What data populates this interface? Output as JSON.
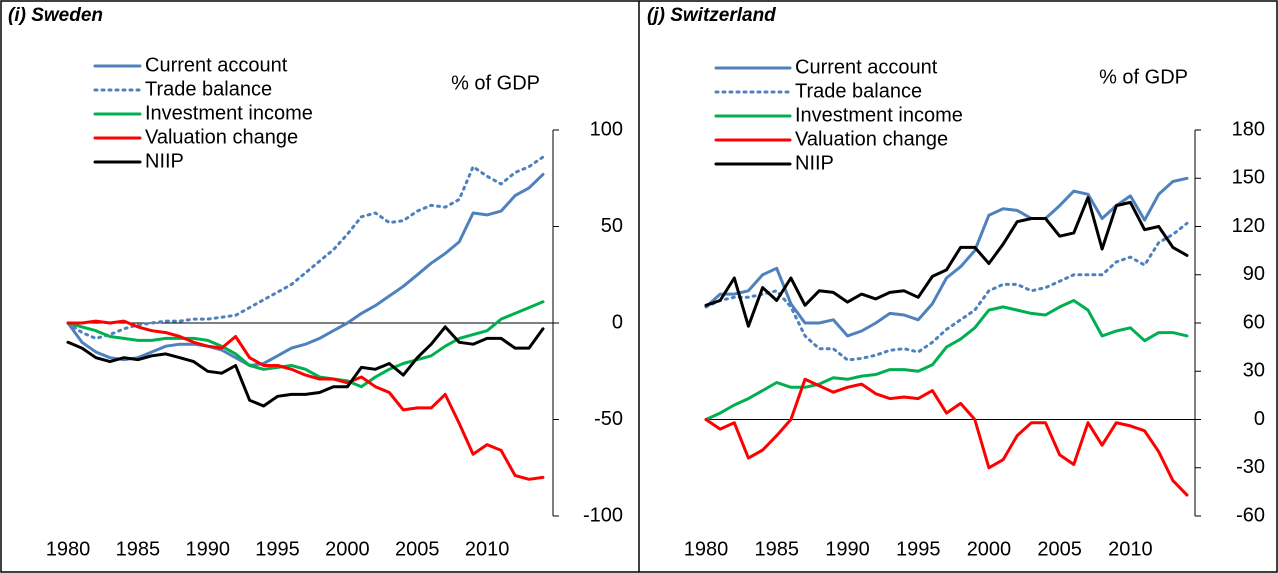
{
  "chart_data": [
    {
      "type": "line",
      "title": "(i) Sweden",
      "y_label": "% of GDP",
      "x": [
        1980,
        1981,
        1982,
        1983,
        1984,
        1985,
        1986,
        1987,
        1988,
        1989,
        1990,
        1991,
        1992,
        1993,
        1994,
        1995,
        1996,
        1997,
        1998,
        1999,
        2000,
        2001,
        2002,
        2003,
        2004,
        2005,
        2006,
        2007,
        2008,
        2009,
        2010,
        2011,
        2012,
        2013,
        2014
      ],
      "xlim": [
        1980,
        2014
      ],
      "xticks": [
        1980,
        1985,
        1990,
        1995,
        2000,
        2005,
        2010
      ],
      "ylim": [
        -100,
        100
      ],
      "yticks": [
        -100,
        -50,
        0,
        50,
        100
      ],
      "zero_line": true,
      "series": [
        {
          "name": "Current account",
          "color": "#4f81bd",
          "style": "solid",
          "values": [
            0,
            -10,
            -15,
            -18,
            -19,
            -18,
            -15,
            -12,
            -11,
            -11,
            -12,
            -14,
            -18,
            -22,
            -21,
            -17,
            -13,
            -11,
            -8,
            -4,
            0,
            5,
            9,
            14,
            19,
            25,
            31,
            36,
            42,
            57,
            56,
            58,
            66,
            70,
            77
          ]
        },
        {
          "name": "Trade balance",
          "color": "#4f81bd",
          "style": "dotted",
          "values": [
            0,
            -5,
            -8,
            -6,
            -3,
            -1,
            0,
            1,
            1,
            2,
            2,
            3,
            4,
            8,
            12,
            16,
            20,
            26,
            32,
            38,
            46,
            55,
            57,
            52,
            53,
            58,
            61,
            60,
            64,
            81,
            76,
            72,
            78,
            81,
            86
          ]
        },
        {
          "name": "Investment income",
          "color": "#00b050",
          "style": "solid",
          "values": [
            0,
            -2,
            -4,
            -7,
            -8,
            -9,
            -9,
            -8,
            -8,
            -8,
            -9,
            -12,
            -16,
            -22,
            -24,
            -23,
            -22,
            -24,
            -28,
            -29,
            -30,
            -33,
            -28,
            -24,
            -21,
            -19,
            -17,
            -12,
            -8,
            -6,
            -4,
            2,
            5,
            8,
            11
          ]
        },
        {
          "name": "Valuation change",
          "color": "#ff0000",
          "style": "solid",
          "values": [
            0,
            0,
            1,
            0,
            1,
            -2,
            -4,
            -5,
            -7,
            -10,
            -12,
            -13,
            -7,
            -18,
            -22,
            -22,
            -24,
            -27,
            -29,
            -29,
            -31,
            -28,
            -33,
            -36,
            -45,
            -44,
            -44,
            -37,
            -52,
            -68,
            -63,
            -66,
            -79,
            -81,
            -80
          ]
        },
        {
          "name": "NIIP",
          "color": "#000000",
          "style": "solid",
          "values": [
            -10,
            -13,
            -18,
            -20,
            -18,
            -19,
            -17,
            -16,
            -18,
            -20,
            -25,
            -26,
            -22,
            -40,
            -43,
            -38,
            -37,
            -37,
            -36,
            -33,
            -33,
            -23,
            -24,
            -21,
            -27,
            -18,
            -11,
            -2,
            -10,
            -11,
            -8,
            -8,
            -13,
            -13,
            -3
          ]
        }
      ]
    },
    {
      "type": "line",
      "title": "(j) Switzerland",
      "y_label": "% of GDP",
      "x": [
        1980,
        1981,
        1982,
        1983,
        1984,
        1985,
        1986,
        1987,
        1988,
        1989,
        1990,
        1991,
        1992,
        1993,
        1994,
        1995,
        1996,
        1997,
        1998,
        1999,
        2000,
        2001,
        2002,
        2003,
        2004,
        2005,
        2006,
        2007,
        2008,
        2009,
        2010,
        2011,
        2012,
        2013,
        2014
      ],
      "xlim": [
        1980,
        2014
      ],
      "xticks": [
        1980,
        1985,
        1990,
        1995,
        2000,
        2005,
        2010
      ],
      "ylim": [
        -60,
        180
      ],
      "yticks": [
        -60,
        -30,
        0,
        30,
        60,
        90,
        120,
        150,
        180
      ],
      "zero_line": true,
      "series": [
        {
          "name": "Current account",
          "color": "#4f81bd",
          "style": "solid",
          "values": [
            70,
            78,
            78,
            80,
            90,
            94,
            72,
            60,
            60,
            62,
            52,
            55,
            60,
            66,
            65,
            62,
            72,
            88,
            95,
            105,
            127,
            131,
            130,
            125,
            125,
            133,
            142,
            140,
            125,
            133,
            139,
            124,
            140,
            148,
            150
          ]
        },
        {
          "name": "Trade balance",
          "color": "#4f81bd",
          "style": "dotted",
          "values": [
            70,
            74,
            76,
            76,
            78,
            80,
            70,
            52,
            44,
            44,
            37,
            38,
            40,
            43,
            44,
            42,
            48,
            56,
            62,
            68,
            80,
            84,
            84,
            80,
            82,
            86,
            90,
            90,
            90,
            98,
            101,
            96,
            110,
            115,
            122
          ]
        },
        {
          "name": "Investment income",
          "color": "#00b050",
          "style": "solid",
          "values": [
            0,
            4,
            9,
            13,
            18,
            23,
            20,
            20,
            22,
            26,
            25,
            27,
            28,
            31,
            31,
            30,
            34,
            45,
            50,
            57,
            68,
            70,
            68,
            66,
            65,
            70,
            74,
            68,
            52,
            55,
            57,
            49,
            54,
            54,
            52
          ]
        },
        {
          "name": "Valuation change",
          "color": "#ff0000",
          "style": "solid",
          "values": [
            0,
            -6,
            -2,
            -24,
            -19,
            -10,
            0,
            25,
            21,
            17,
            20,
            22,
            16,
            13,
            14,
            13,
            18,
            4,
            10,
            0,
            -30,
            -25,
            -10,
            -2,
            -2,
            -22,
            -28,
            -2,
            -16,
            -2,
            -4,
            -7,
            -20,
            -38,
            -47
          ]
        },
        {
          "name": "NIIP",
          "color": "#000000",
          "style": "solid",
          "values": [
            71,
            74,
            88,
            58,
            82,
            74,
            88,
            71,
            80,
            79,
            73,
            78,
            75,
            79,
            80,
            76,
            89,
            93,
            107,
            107,
            97,
            109,
            123,
            125,
            125,
            114,
            116,
            138,
            106,
            133,
            135,
            118,
            120,
            107,
            102
          ]
        }
      ]
    }
  ]
}
